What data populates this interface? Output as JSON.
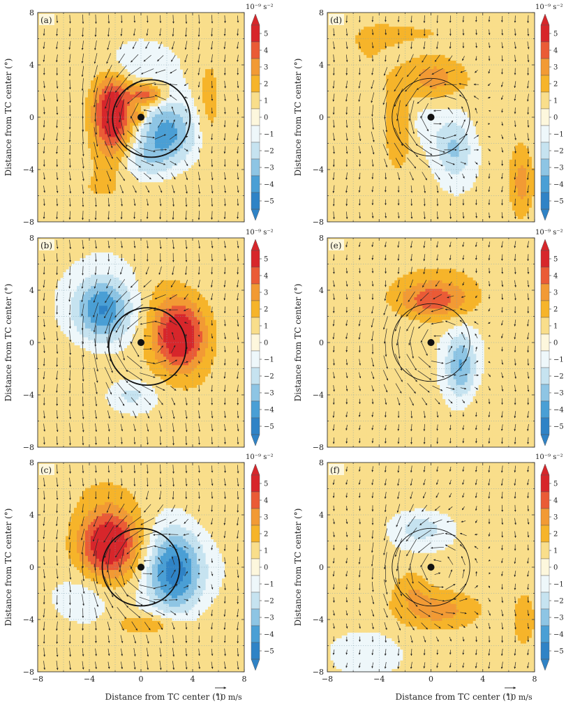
{
  "figure": {
    "ylabel": "Distance from TC center (°)",
    "xlabel": "Distance from TC center (°)",
    "x_ticks": [
      "−8",
      "−4",
      "0",
      "4",
      "8"
    ],
    "y_ticks": [
      "8",
      "4",
      "0",
      "−4",
      "−8"
    ],
    "vector_reference": "10 m/s",
    "colorbar_unit": "10⁻⁹ s⁻²",
    "colorbar_labels": [
      "5",
      "4",
      "3",
      "2",
      "1",
      "0",
      "−1",
      "−2",
      "−3",
      "−4",
      "−5"
    ],
    "colorbar_colors": [
      "#d7262b",
      "#ea5b36",
      "#f29a34",
      "#f6b42a",
      "#f9de8b",
      "#fdf7dd",
      "#eef7fa",
      "#c6e3f0",
      "#8ec5e4",
      "#4a9fd5",
      "#2f83c6"
    ]
  },
  "chart_data": [
    {
      "type": "heatmap",
      "panel": "(a)",
      "xlim": [
        -8,
        8
      ],
      "ylim": [
        -8,
        8
      ],
      "contour_levels": [
        -5,
        -4,
        -3,
        -2,
        -1,
        0,
        1,
        2,
        3,
        4,
        5
      ],
      "unit": "10^-9 s^-2",
      "anomalies": [
        {
          "x": -2.2,
          "y": 0.2,
          "value": 5.4,
          "sx": 1.1,
          "sy": 2.2
        },
        {
          "x": 0.5,
          "y": 1.7,
          "value": 3.5,
          "sx": 0.9,
          "sy": 0.6
        },
        {
          "x": 2.0,
          "y": -1.2,
          "value": -3.6,
          "sx": 1.5,
          "sy": 1.7
        },
        {
          "x": 0.2,
          "y": -3.4,
          "value": -1.6,
          "sx": 1.3,
          "sy": 1.1
        },
        {
          "x": -0.8,
          "y": 4.0,
          "value": -1.3,
          "sx": 1.8,
          "sy": 1.0
        },
        {
          "x": 5.3,
          "y": 1.2,
          "value": 1.3,
          "sx": 0.7,
          "sy": 2.8
        },
        {
          "x": -3.8,
          "y": -5.5,
          "value": 0.8,
          "sx": 4.0,
          "sy": 1.6
        },
        {
          "x": 5.0,
          "y": -5.8,
          "value": 0.7,
          "sx": 2.5,
          "sy": 1.5
        },
        {
          "x": -0.2,
          "y": 0.0,
          "value": 2.6,
          "sx": 0.35,
          "sy": 0.35
        }
      ],
      "circle_radius": 3,
      "circle_center": [
        0.8,
        -0.1
      ],
      "wind_reference": "10 m/s",
      "flow": {
        "rotation": 4.8,
        "drift": [
          0.0,
          -2.2
        ]
      }
    },
    {
      "type": "heatmap",
      "panel": "(b)",
      "xlim": [
        -8,
        8
      ],
      "ylim": [
        -8,
        8
      ],
      "contour_levels": [
        -5,
        -4,
        -3,
        -2,
        -1,
        0,
        1,
        2,
        3,
        4,
        5
      ],
      "unit": "10^-9 s^-2",
      "anomalies": [
        {
          "x": 3.0,
          "y": 0.5,
          "value": 5.3,
          "sx": 1.5,
          "sy": 2.0
        },
        {
          "x": -3.0,
          "y": 2.5,
          "value": -4.3,
          "sx": 1.5,
          "sy": 1.7
        },
        {
          "x": -0.8,
          "y": -4.0,
          "value": -1.6,
          "sx": 1.3,
          "sy": 0.8
        },
        {
          "x": -4.5,
          "y": -2.5,
          "value": 0.6,
          "sx": 3.0,
          "sy": 2.2
        },
        {
          "x": 6.0,
          "y": -5.0,
          "value": 0.6,
          "sx": 2.0,
          "sy": 2.0
        },
        {
          "x": 1.5,
          "y": 4.5,
          "value": 0.5,
          "sx": 1.2,
          "sy": 1.8
        }
      ],
      "circle_radius": 3,
      "circle_center": [
        0.5,
        -0.3
      ],
      "wind_reference": "10 m/s",
      "flow": {
        "rotation": 4.8,
        "drift": [
          0.0,
          -2.2
        ]
      }
    },
    {
      "type": "heatmap",
      "panel": "(c)",
      "xlim": [
        -8,
        8
      ],
      "ylim": [
        -8,
        8
      ],
      "contour_levels": [
        -5,
        -4,
        -3,
        -2,
        -1,
        0,
        1,
        2,
        3,
        4,
        5
      ],
      "unit": "10^-9 s^-2",
      "anomalies": [
        {
          "x": -2.5,
          "y": 1.8,
          "value": 5.4,
          "sx": 1.7,
          "sy": 1.9
        },
        {
          "x": 2.6,
          "y": -0.3,
          "value": -4.8,
          "sx": 1.5,
          "sy": 2.2
        },
        {
          "x": 0.6,
          "y": -4.4,
          "value": 1.8,
          "sx": 1.8,
          "sy": 0.6
        },
        {
          "x": -4.5,
          "y": -2.5,
          "value": -1.1,
          "sx": 1.3,
          "sy": 1.3
        },
        {
          "x": -3.0,
          "y": 6.0,
          "value": 0.6,
          "sx": 3.0,
          "sy": 1.3
        },
        {
          "x": 5.5,
          "y": 5.0,
          "value": 0.6,
          "sx": 1.8,
          "sy": 2.0
        },
        {
          "x": -6.0,
          "y": -6.0,
          "value": 0.6,
          "sx": 2.0,
          "sy": 1.5
        },
        {
          "x": 6.0,
          "y": -5.5,
          "value": 0.6,
          "sx": 2.0,
          "sy": 2.0
        }
      ],
      "circle_radius": 3,
      "circle_center": [
        0.0,
        0.0
      ],
      "wind_reference": "10 m/s",
      "flow": {
        "rotation": 4.8,
        "drift": [
          0.0,
          -2.2
        ]
      }
    },
    {
      "type": "heatmap",
      "panel": "(d)",
      "xlim": [
        -8,
        8
      ],
      "ylim": [
        -8,
        8
      ],
      "contour_levels": [
        -5,
        -4,
        -3,
        -2,
        -1,
        0,
        1,
        2,
        3,
        4,
        5
      ],
      "unit": "10^-9 s^-2",
      "anomalies": [
        {
          "x": 0.3,
          "y": 3.0,
          "value": 2.3,
          "sx": 1.6,
          "sy": 1.1
        },
        {
          "x": -2.5,
          "y": -1.0,
          "value": 1.6,
          "sx": 0.8,
          "sy": 2.0
        },
        {
          "x": 1.8,
          "y": -2.4,
          "value": -2.4,
          "sx": 1.0,
          "sy": 1.6
        },
        {
          "x": -0.5,
          "y": -0.5,
          "value": -0.8,
          "sx": 1.0,
          "sy": 1.0
        },
        {
          "x": 7.0,
          "y": -5.0,
          "value": 2.2,
          "sx": 0.7,
          "sy": 2.0
        },
        {
          "x": -5.0,
          "y": 4.0,
          "value": 0.8,
          "sx": 2.2,
          "sy": 3.0
        },
        {
          "x": 0.0,
          "y": 6.5,
          "value": 0.8,
          "sx": 4.0,
          "sy": 1.0
        },
        {
          "x": 5.0,
          "y": 2.0,
          "value": 0.7,
          "sx": 1.5,
          "sy": 3.0
        },
        {
          "x": -5.0,
          "y": -5.5,
          "value": 0.7,
          "sx": 3.0,
          "sy": 1.5
        }
      ],
      "circle_radius": 3,
      "circle_center": [
        0.0,
        0.0
      ],
      "wind_reference": "10 m/s",
      "flow": {
        "rotation": 4.2,
        "drift": [
          0.0,
          -1.8
        ]
      }
    },
    {
      "type": "heatmap",
      "panel": "(e)",
      "xlim": [
        -8,
        8
      ],
      "ylim": [
        -8,
        8
      ],
      "contour_levels": [
        -5,
        -4,
        -3,
        -2,
        -1,
        0,
        1,
        2,
        3,
        4,
        5
      ],
      "unit": "10^-9 s^-2",
      "anomalies": [
        {
          "x": 0.2,
          "y": 3.2,
          "value": 3.2,
          "sx": 2.0,
          "sy": 1.0
        },
        {
          "x": 2.3,
          "y": -1.8,
          "value": -3.3,
          "sx": 0.8,
          "sy": 1.7
        },
        {
          "x": 0.5,
          "y": 5.0,
          "value": 0.8,
          "sx": 3.5,
          "sy": 1.5
        },
        {
          "x": -6.0,
          "y": -5.0,
          "value": 0.7,
          "sx": 2.0,
          "sy": 2.2
        },
        {
          "x": 5.5,
          "y": -5.5,
          "value": 0.7,
          "sx": 2.5,
          "sy": 2.0
        }
      ],
      "circle_radius": 3,
      "circle_center": [
        0.0,
        0.0
      ],
      "wind_reference": "10 m/s",
      "flow": {
        "rotation": 3.6,
        "drift": [
          0.0,
          -1.6
        ]
      }
    },
    {
      "type": "heatmap",
      "panel": "(f)",
      "xlim": [
        -8,
        8
      ],
      "ylim": [
        -8,
        8
      ],
      "contour_levels": [
        -5,
        -4,
        -3,
        -2,
        -1,
        0,
        1,
        2,
        3,
        4,
        5
      ],
      "unit": "10^-9 s^-2",
      "anomalies": [
        {
          "x": 0.5,
          "y": -3.3,
          "value": 2.3,
          "sx": 2.4,
          "sy": 1.1
        },
        {
          "x": -1.5,
          "y": -1.5,
          "value": 1.3,
          "sx": 1.0,
          "sy": 1.0
        },
        {
          "x": -0.8,
          "y": 3.0,
          "value": -1.7,
          "sx": 1.5,
          "sy": 0.9
        },
        {
          "x": 7.2,
          "y": -4.0,
          "value": 1.8,
          "sx": 0.6,
          "sy": 1.5
        },
        {
          "x": -5.0,
          "y": -6.5,
          "value": -1.0,
          "sx": 1.5,
          "sy": 1.0
        },
        {
          "x": 0.0,
          "y": 6.0,
          "value": 0.6,
          "sx": 4.0,
          "sy": 1.4
        },
        {
          "x": -6.0,
          "y": 1.0,
          "value": 0.6,
          "sx": 1.6,
          "sy": 3.0
        },
        {
          "x": 5.0,
          "y": 3.0,
          "value": 0.6,
          "sx": 1.5,
          "sy": 2.0
        }
      ],
      "circle_radius": 3,
      "circle_center": [
        0.0,
        0.0
      ],
      "wind_reference": "10 m/s",
      "flow": {
        "rotation": 4.0,
        "drift": [
          0.0,
          -1.6
        ]
      }
    }
  ]
}
